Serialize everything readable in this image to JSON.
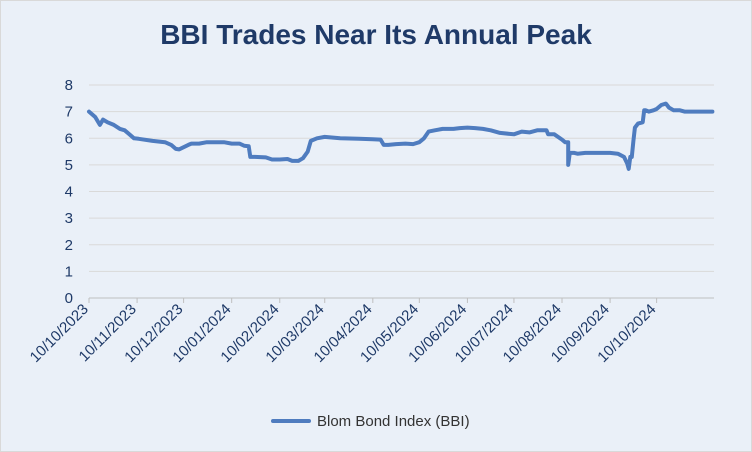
{
  "chart_data": {
    "type": "line",
    "title": "BBI Trades Near Its Annual Peak",
    "xlabel": "",
    "ylabel": "",
    "ylim": [
      0,
      8
    ],
    "yticks": [
      0,
      1,
      2,
      3,
      4,
      5,
      6,
      7,
      8
    ],
    "xlim": [
      "10/10/2023",
      "16/11/2024"
    ],
    "xtick_labels": [
      "10/10/2023",
      "10/11/2023",
      "10/12/2023",
      "10/01/2024",
      "10/02/2024",
      "10/03/2024",
      "10/04/2024",
      "10/05/2024",
      "10/06/2024",
      "10/07/2024",
      "10/08/2024",
      "10/09/2024",
      "10/10/2024"
    ],
    "grid": true,
    "legend_position": "bottom",
    "color": "#4f7cbf",
    "series": [
      {
        "name": "Blom Bond Index (BBI)",
        "x": [
          "10/10/2023",
          "14/10/2023",
          "17/10/2023",
          "19/10/2023",
          "22/10/2023",
          "26/10/2023",
          "30/10/2023",
          "02/11/2023",
          "08/11/2023",
          "11/11/2023",
          "20/11/2023",
          "28/11/2023",
          "02/12/2023",
          "05/12/2023",
          "07/12/2023",
          "13/12/2023",
          "15/12/2023",
          "20/12/2023",
          "25/12/2023",
          "01/01/2024",
          "05/01/2024",
          "10/01/2024",
          "15/01/2024",
          "18/01/2024",
          "21/01/2024",
          "22/01/2024",
          "25/01/2024",
          "01/02/2024",
          "05/02/2024",
          "10/02/2024",
          "15/02/2024",
          "18/02/2024",
          "22/02/2024",
          "25/02/2024",
          "28/02/2024",
          "01/03/2024",
          "05/03/2024",
          "10/03/2024",
          "20/03/2024",
          "01/04/2024",
          "10/04/2024",
          "15/04/2024",
          "17/04/2024",
          "20/04/2024",
          "25/04/2024",
          "01/05/2024",
          "06/05/2024",
          "10/05/2024",
          "13/05/2024",
          "16/05/2024",
          "20/05/2024",
          "25/05/2024",
          "01/06/2024",
          "05/06/2024",
          "10/06/2024",
          "15/06/2024",
          "20/06/2024",
          "25/06/2024",
          "01/07/2024",
          "10/07/2024",
          "15/07/2024",
          "20/07/2024",
          "25/07/2024",
          "31/07/2024",
          "01/08/2024",
          "05/08/2024",
          "10/08/2024",
          "12/08/2024",
          "14/08/2024",
          "14/08/2024",
          "15/08/2024",
          "18/08/2024",
          "20/08/2024",
          "25/08/2024",
          "01/09/2024",
          "05/09/2024",
          "10/09/2024",
          "15/09/2024",
          "19/09/2024",
          "21/09/2024",
          "22/09/2024",
          "23/09/2024",
          "24/09/2024",
          "25/09/2024",
          "26/09/2024",
          "28/09/2024",
          "01/10/2024",
          "02/10/2024",
          "03/10/2024",
          "05/10/2024",
          "08/10/2024",
          "10/10/2024",
          "13/10/2024",
          "16/10/2024",
          "18/10/2024",
          "21/10/2024",
          "23/10/2024",
          "25/10/2024",
          "28/10/2024",
          "01/11/2024",
          "05/11/2024",
          "10/11/2024",
          "15/11/2024"
        ],
        "values": [
          7.0,
          6.8,
          6.5,
          6.7,
          6.6,
          6.5,
          6.35,
          6.3,
          6.0,
          5.98,
          5.9,
          5.85,
          5.75,
          5.6,
          5.58,
          5.75,
          5.8,
          5.8,
          5.85,
          5.85,
          5.85,
          5.8,
          5.8,
          5.72,
          5.7,
          5.3,
          5.3,
          5.28,
          5.2,
          5.2,
          5.22,
          5.15,
          5.15,
          5.25,
          5.5,
          5.9,
          6.0,
          6.05,
          6.0,
          5.98,
          5.96,
          5.95,
          5.75,
          5.75,
          5.78,
          5.8,
          5.78,
          5.85,
          6.0,
          6.25,
          6.3,
          6.35,
          6.35,
          6.38,
          6.4,
          6.38,
          6.35,
          6.3,
          6.2,
          6.15,
          6.25,
          6.22,
          6.3,
          6.3,
          6.15,
          6.15,
          5.95,
          5.85,
          5.85,
          5.0,
          5.45,
          5.45,
          5.42,
          5.45,
          5.45,
          5.45,
          5.45,
          5.42,
          5.3,
          5.05,
          4.85,
          5.3,
          5.3,
          5.9,
          6.4,
          6.55,
          6.6,
          7.05,
          7.05,
          7.0,
          7.05,
          7.1,
          7.25,
          7.3,
          7.15,
          7.05,
          7.05,
          7.05,
          7.0,
          7.0,
          7.0,
          7.0,
          7.0
        ]
      }
    ]
  }
}
